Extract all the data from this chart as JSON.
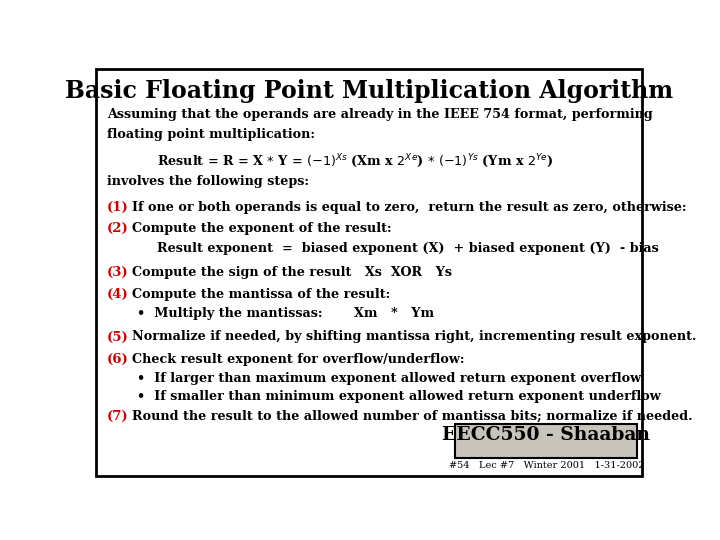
{
  "title": "Basic Floating Point Multiplication Algorithm",
  "bg": "#ffffff",
  "border": "#000000",
  "red": "#cc0000",
  "black": "#000000",
  "footer_text": "EECC550 - Shaaban",
  "footer_sub": "#54   Lec #7   Winter 2001   1-31-2002",
  "footer_bg": "#c8c4bc"
}
